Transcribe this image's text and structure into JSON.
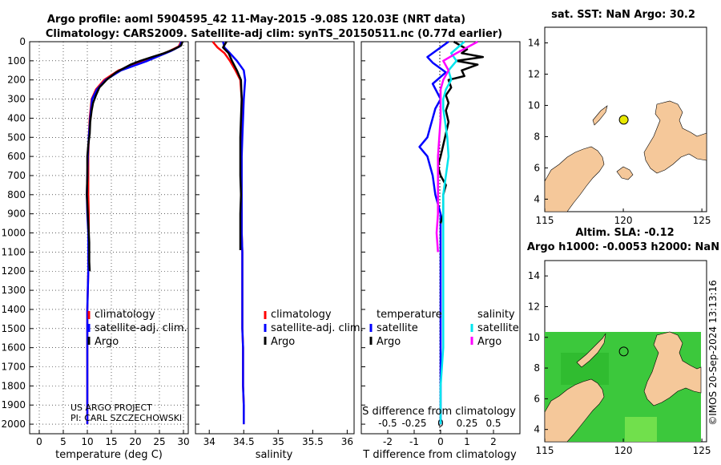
{
  "title": {
    "line1": "Argo profile: aoml 5904595_42 11-May-2015 -9.08S 120.03E (NRT data)",
    "line2": "Climatology: CARS2009. Satellite-adj clim: synTS_20150511.nc (0.77d earlier)"
  },
  "colors": {
    "climatology": "#ff0000",
    "satellite": "#0000ff",
    "argo": "#000000",
    "sal_satellite": "#00e5ee",
    "sal_argo": "#ff00ff",
    "land": "#f5c89a",
    "float": "#e8e800"
  },
  "depth_ticks": [
    "0",
    "100",
    "200",
    "300",
    "400",
    "500",
    "600",
    "700",
    "800",
    "900",
    "1000",
    "1100",
    "1200",
    "1300",
    "1400",
    "1500",
    "1600",
    "1700",
    "1800",
    "1900",
    "2000"
  ],
  "legend": {
    "climatology": "climatology",
    "satellite": "satellite-adj. clim.",
    "argo": "Argo"
  },
  "credits": {
    "project": "US ARGO PROJECT",
    "pi": "PI: CARL SZCZECHOWSKI"
  },
  "chart_data": [
    {
      "type": "line",
      "panel": "temperature",
      "xlabel": "temperature (deg C)",
      "ylabel": "depth",
      "xlim": [
        -2,
        31
      ],
      "ylim": [
        2050,
        0
      ],
      "xticks": [
        "0",
        "5",
        "10",
        "15",
        "20",
        "25",
        "30"
      ],
      "series": [
        {
          "name": "climatology",
          "x": [
            29.5,
            29.0,
            27.0,
            22.0,
            16.5,
            13.5,
            11.8,
            10.9,
            10.5,
            10.3,
            10.2,
            10.2,
            10.2,
            10.3,
            10.3,
            10.2,
            10.2,
            10.1,
            10.0,
            10.0,
            10.0,
            10.0,
            10.0,
            10.0,
            10.0,
            10.0,
            10.0
          ],
          "depth": [
            0,
            25,
            50,
            100,
            150,
            200,
            250,
            300,
            400,
            500,
            600,
            700,
            800,
            900,
            1000,
            1100,
            1200,
            1300,
            1400,
            1500,
            1600,
            1700,
            1800,
            1900,
            1950,
            2000,
            2000
          ]
        },
        {
          "name": "satellite",
          "x": [
            29.6,
            29.2,
            27.3,
            22.5,
            17.0,
            13.8,
            12.0,
            11.0,
            10.6,
            10.3,
            10.1,
            10.0,
            9.9,
            10.0,
            10.2,
            10.2,
            10.2,
            10.1,
            10.0,
            10.0,
            10.0,
            10.0,
            10.0,
            10.0,
            10.0,
            10.0,
            10.0
          ],
          "depth": [
            0,
            25,
            50,
            100,
            150,
            200,
            250,
            300,
            400,
            500,
            600,
            700,
            800,
            900,
            1000,
            1100,
            1200,
            1300,
            1400,
            1500,
            1600,
            1700,
            1800,
            1900,
            1950,
            2000,
            2000
          ]
        },
        {
          "name": "Argo",
          "x": [
            29.8,
            29.5,
            28.0,
            26.0,
            23.5,
            21.0,
            19.0,
            17.5,
            16.0,
            14.0,
            12.5,
            11.8,
            11.2,
            10.9,
            10.6,
            10.5,
            10.2,
            10.0,
            10.0,
            9.9,
            10.0,
            10.1,
            10.2,
            10.3,
            10.4,
            10.4,
            10.4,
            10.5
          ],
          "depth": [
            0,
            20,
            40,
            60,
            80,
            100,
            120,
            140,
            160,
            200,
            240,
            280,
            320,
            360,
            420,
            480,
            540,
            600,
            700,
            800,
            850,
            900,
            950,
            1000,
            1050,
            1100,
            1150,
            1200
          ]
        }
      ]
    },
    {
      "type": "line",
      "panel": "salinity",
      "xlabel": "salinity",
      "ylabel": "depth",
      "xlim": [
        33.8,
        36.1
      ],
      "xticks": [
        "34",
        "34.5",
        "35",
        "35.5",
        "36"
      ],
      "series": [
        {
          "name": "climatology",
          "x": [
            34.05,
            34.12,
            34.22,
            34.3,
            34.38,
            34.45,
            34.47,
            34.47,
            34.46,
            34.46,
            34.46,
            34.46,
            34.47,
            34.47,
            34.48,
            34.48,
            34.48,
            34.48,
            34.48,
            34.49,
            34.49,
            34.49,
            34.5,
            34.5
          ],
          "depth": [
            0,
            30,
            60,
            100,
            150,
            200,
            300,
            400,
            500,
            600,
            700,
            800,
            900,
            1000,
            1100,
            1200,
            1300,
            1400,
            1500,
            1600,
            1700,
            1800,
            1900,
            2000
          ]
        },
        {
          "name": "satellite",
          "x": [
            34.2,
            34.22,
            34.3,
            34.4,
            34.5,
            34.52,
            34.5,
            34.49,
            34.48,
            34.47,
            34.47,
            34.47,
            34.47,
            34.47,
            34.48,
            34.48,
            34.48,
            34.48,
            34.48,
            34.49,
            34.49,
            34.49,
            34.5,
            34.5
          ],
          "depth": [
            0,
            30,
            60,
            100,
            150,
            200,
            300,
            400,
            500,
            600,
            700,
            800,
            900,
            1000,
            1100,
            1200,
            1300,
            1400,
            1500,
            1600,
            1700,
            1800,
            1900,
            2000
          ]
        },
        {
          "name": "Argo",
          "x": [
            34.25,
            34.2,
            34.28,
            34.33,
            34.4,
            34.46,
            34.47,
            34.46,
            34.45,
            34.45,
            34.45,
            34.46,
            34.45,
            34.45,
            34.45,
            34.45,
            34.45
          ],
          "depth": [
            0,
            30,
            60,
            100,
            150,
            200,
            300,
            400,
            500,
            600,
            700,
            800,
            900,
            950,
            1000,
            1050,
            1090
          ]
        }
      ]
    },
    {
      "type": "line",
      "panel": "T difference from climatology",
      "xlabel": "T difference from climatology",
      "secondary_xlabel": "S difference from climatology",
      "xlim": [
        -3,
        3
      ],
      "xticks": [
        "-2",
        "-1",
        "0",
        "1",
        "2"
      ],
      "secondary_xticks": [
        "-0.5",
        "-0.25",
        "0",
        "0.25",
        "0.5"
      ],
      "legend_headers": {
        "temperature": "temperature",
        "salinity": "salinity"
      },
      "legend_items": {
        "t_satellite": "satellite",
        "t_argo": "Argo",
        "s_satellite": "satellite",
        "s_argo": "Argo"
      },
      "series": [
        {
          "name": "temperature satellite",
          "x": [
            0.3,
            -0.5,
            -0.3,
            0.2,
            -0.3,
            0.0,
            -0.2,
            -0.3,
            -0.4,
            -0.5,
            -0.8,
            -0.5,
            -0.3,
            -0.2,
            0.0,
            0.0,
            0.0,
            0.0,
            0.0,
            0.0,
            0.0,
            0.0,
            0.0,
            0.0,
            0.0,
            0.0
          ],
          "depth": [
            0,
            80,
            110,
            160,
            220,
            300,
            350,
            400,
            450,
            500,
            550,
            600,
            700,
            800,
            900,
            1000,
            1100,
            1200,
            1300,
            1400,
            1500,
            1600,
            1700,
            1800,
            1900,
            2000
          ]
        },
        {
          "name": "temperature Argo",
          "x": [
            0.5,
            1.0,
            0.8,
            1.6,
            0.6,
            1.4,
            0.8,
            0.9,
            0.3,
            0.4,
            0.2,
            0.3,
            0.2,
            0.3,
            0.2,
            0.1,
            0.0,
            -0.1,
            0.0,
            0.2,
            0.1,
            0.1,
            0.1,
            0.0
          ],
          "depth": [
            0,
            40,
            60,
            80,
            100,
            120,
            150,
            180,
            200,
            240,
            280,
            320,
            360,
            420,
            480,
            540,
            600,
            650,
            700,
            750,
            800,
            850,
            900,
            950
          ]
        },
        {
          "name": "salinity satellite",
          "x": [
            0.9,
            0.4,
            0.6,
            0.3,
            0.4,
            0.2,
            0.1,
            0.1,
            0.15,
            0.25,
            0.3,
            0.2,
            0.1,
            0.1,
            0.1,
            0.1,
            0.1,
            0.1,
            0.0,
            0.0,
            0.0
          ],
          "depth": [
            0,
            60,
            100,
            150,
            200,
            250,
            300,
            350,
            400,
            500,
            600,
            700,
            800,
            900,
            1000,
            1200,
            1400,
            1600,
            1800,
            1900,
            2000
          ]
        },
        {
          "name": "salinity Argo",
          "x": [
            1.4,
            0.6,
            0.1,
            0.3,
            0.1,
            0.0,
            0.0,
            -0.1,
            -0.1,
            -0.1,
            -0.15,
            -0.1
          ],
          "depth": [
            0,
            60,
            100,
            150,
            200,
            250,
            400,
            600,
            800,
            900,
            1000,
            1100
          ]
        }
      ]
    },
    {
      "type": "map",
      "title": "sat. SST: NaN Argo: 30.2",
      "xlim": [
        115,
        125.3
      ],
      "ylim": [
        3.2,
        15
      ],
      "xticks": [
        "115",
        "120",
        "125"
      ],
      "yticks": [
        "4",
        "6",
        "8",
        "10",
        "12",
        "14"
      ],
      "float_position": {
        "lon": 120.03,
        "lat": 9.08
      }
    },
    {
      "type": "map",
      "title_line1": "Altim. SLA: -0.12",
      "title_line2": "Argo h1000: -0.0053 h2000: NaN",
      "xlim": [
        115,
        125.3
      ],
      "ylim": [
        3.2,
        15
      ],
      "xticks": [
        "115",
        "120",
        "125"
      ],
      "yticks": [
        "4",
        "6",
        "8",
        "10",
        "12",
        "14"
      ],
      "float_position": {
        "lon": 120.03,
        "lat": 9.08
      }
    }
  ],
  "timestamp": "©IMOS 20-Sep-2024 13:13:16"
}
